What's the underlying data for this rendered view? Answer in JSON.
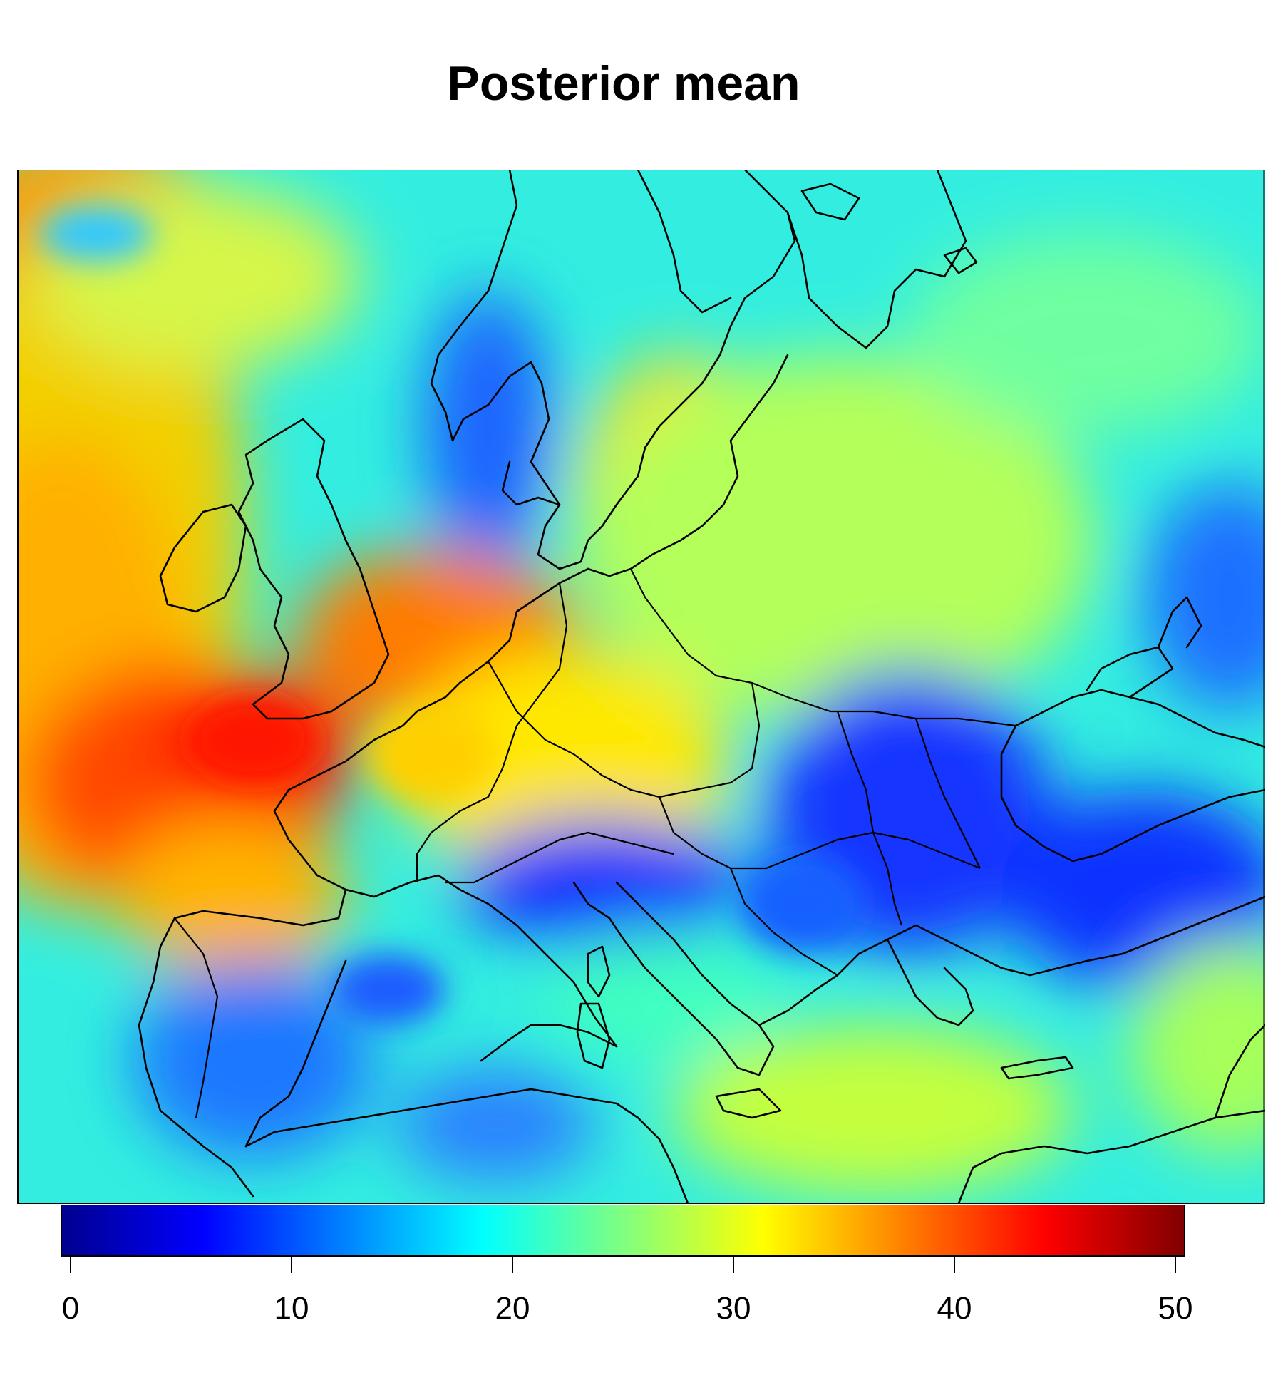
{
  "title": "Posterior mean",
  "colorbar": {
    "min": 0,
    "max": 50,
    "ticks": [
      {
        "value": 0,
        "label": "0"
      },
      {
        "value": 10,
        "label": "10"
      },
      {
        "value": 20,
        "label": "20"
      },
      {
        "value": 30,
        "label": "30"
      },
      {
        "value": 40,
        "label": "40"
      },
      {
        "value": 50,
        "label": "50"
      }
    ],
    "palette": [
      "#00008f",
      "#0000ff",
      "#0080ff",
      "#00ffff",
      "#80ff80",
      "#ffff00",
      "#ff8000",
      "#ff0000",
      "#800000"
    ]
  }
}
